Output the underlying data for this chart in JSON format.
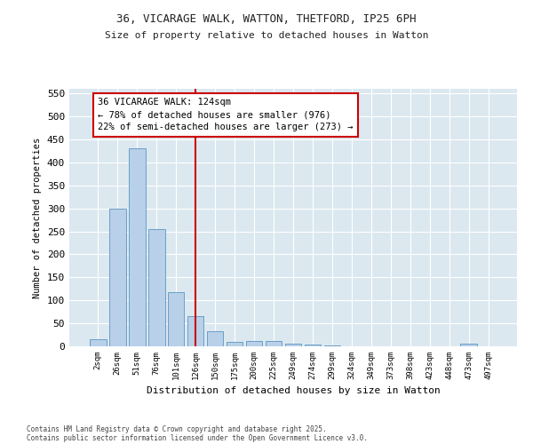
{
  "title_line1": "36, VICARAGE WALK, WATTON, THETFORD, IP25 6PH",
  "title_line2": "Size of property relative to detached houses in Watton",
  "xlabel": "Distribution of detached houses by size in Watton",
  "ylabel": "Number of detached properties",
  "bar_labels": [
    "2sqm",
    "26sqm",
    "51sqm",
    "76sqm",
    "101sqm",
    "126sqm",
    "150sqm",
    "175sqm",
    "200sqm",
    "225sqm",
    "249sqm",
    "274sqm",
    "299sqm",
    "324sqm",
    "349sqm",
    "373sqm",
    "398sqm",
    "423sqm",
    "448sqm",
    "473sqm",
    "497sqm"
  ],
  "bar_values": [
    15,
    300,
    430,
    255,
    118,
    65,
    33,
    10,
    12,
    12,
    5,
    3,
    2,
    0,
    0,
    0,
    0,
    0,
    0,
    5,
    0
  ],
  "bar_color": "#b8d0e8",
  "bar_edge_color": "#6a9fc8",
  "ylim": [
    0,
    560
  ],
  "yticks": [
    0,
    50,
    100,
    150,
    200,
    250,
    300,
    350,
    400,
    450,
    500,
    550
  ],
  "property_line_x": 5.0,
  "property_line_color": "#cc0000",
  "annotation_text": "36 VICARAGE WALK: 124sqm\n← 78% of detached houses are smaller (976)\n22% of semi-detached houses are larger (273) →",
  "annotation_box_color": "#cc0000",
  "plot_bg_color": "#dce8f0",
  "fig_bg_color": "#ffffff",
  "footer_line1": "Contains HM Land Registry data © Crown copyright and database right 2025.",
  "footer_line2": "Contains public sector information licensed under the Open Government Licence v3.0."
}
